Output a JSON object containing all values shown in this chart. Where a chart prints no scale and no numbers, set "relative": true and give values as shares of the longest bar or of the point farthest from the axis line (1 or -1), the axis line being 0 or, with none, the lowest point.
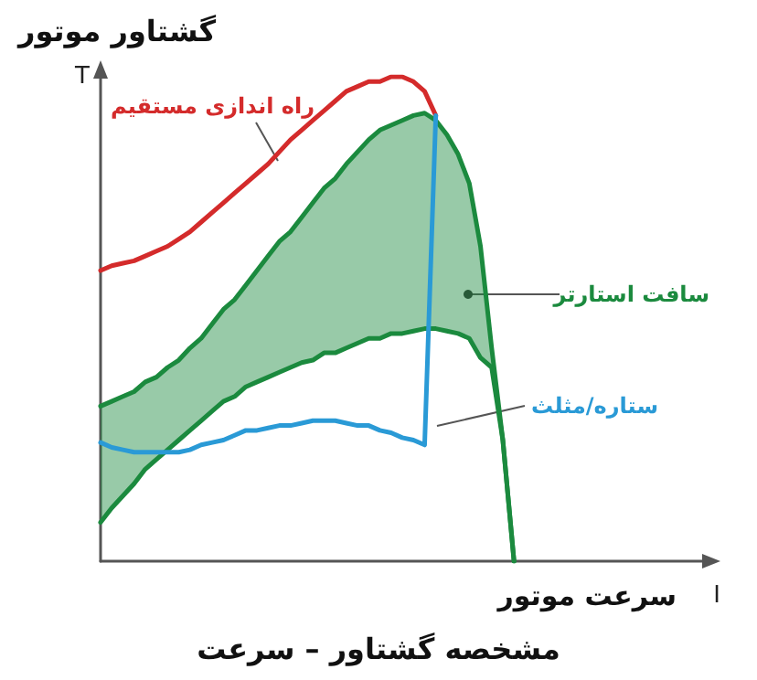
{
  "chart_data": {
    "type": "line",
    "title": "مشخصه گشتاور – سرعت",
    "xlabel": "سرعت موتور",
    "ylabel": "گشتاور موتور",
    "annotations": [
      "T",
      "I"
    ],
    "relative": true,
    "grid": false,
    "legend": false,
    "marker": "none",
    "line_style": "solid",
    "categories": [
      null,
      null,
      null,
      null,
      null,
      null,
      null,
      null,
      null,
      null,
      null,
      null,
      null,
      null,
      null,
      null,
      null,
      null,
      null,
      null,
      null,
      null,
      null,
      null,
      null,
      null,
      null,
      null,
      null,
      null,
      null,
      null,
      null,
      null,
      null,
      null,
      null,
      null,
      null,
      null,
      null,
      null,
      null,
      null,
      null,
      null,
      null,
      null,
      null,
      null,
      null,
      null,
      null,
      null,
      null
    ],
    "series": [
      {
        "name": "راه اندازی مستقیم",
        "color": "#d42b2b",
        "values": [
          0.6,
          0.61,
          0.615,
          0.62,
          0.63,
          0.64,
          0.65,
          0.665,
          0.68,
          0.7,
          0.72,
          0.74,
          0.76,
          0.78,
          0.8,
          0.82,
          0.845,
          0.87,
          0.89,
          0.91,
          0.93,
          0.95,
          0.97,
          0.98,
          0.99,
          0.99,
          1,
          1,
          0.99,
          0.97,
          0.92,
          null,
          null,
          null,
          null,
          null,
          null,
          null,
          null,
          null,
          null,
          null,
          null,
          null,
          null,
          null,
          null,
          null,
          null,
          null,
          null,
          null,
          null,
          null,
          null
        ]
      },
      {
        "name": "سافت استارتر",
        "color": "#1b8a3e",
        "values": [
          0.32,
          0.33,
          0.34,
          0.35,
          0.37,
          0.38,
          0.4,
          0.415,
          0.44,
          0.46,
          0.49,
          0.52,
          0.54,
          0.57,
          0.6,
          0.63,
          0.66,
          0.68,
          0.71,
          0.74,
          0.77,
          0.79,
          0.82,
          0.845,
          0.87,
          0.89,
          0.9,
          0.91,
          0.92,
          0.925,
          0.91,
          0.88,
          0.84,
          0.78,
          0.65,
          0.44,
          0.25,
          0,
          null,
          null,
          null,
          null,
          null,
          null,
          null,
          null,
          null,
          null,
          null,
          null,
          null,
          null,
          null,
          null,
          null
        ],
        "upper": [
          0.32,
          0.33,
          0.34,
          0.35,
          0.37,
          0.38,
          0.4,
          0.415,
          0.44,
          0.46,
          0.49,
          0.52,
          0.54,
          0.57,
          0.6,
          0.63,
          0.66,
          0.68,
          0.71,
          0.74,
          0.77,
          0.79,
          0.82,
          0.845,
          0.87,
          0.89,
          0.9,
          0.91,
          0.92,
          0.925,
          0.91,
          0.88,
          0.84,
          0.78,
          0.65,
          0.44,
          0.25,
          0,
          null,
          null,
          null,
          null,
          null,
          null,
          null,
          null,
          null,
          null,
          null,
          null,
          null,
          null,
          null,
          null,
          null
        ],
        "lower": [
          0.08,
          0.11,
          0.135,
          0.16,
          0.19,
          0.21,
          0.23,
          0.25,
          0.27,
          0.29,
          0.31,
          0.33,
          0.34,
          0.36,
          0.37,
          0.38,
          0.39,
          0.4,
          0.41,
          0.415,
          0.43,
          0.43,
          0.44,
          0.45,
          0.46,
          0.46,
          0.47,
          0.47,
          0.475,
          0.48,
          0.48,
          0.475,
          0.47,
          0.46,
          0.42,
          0.4,
          0.25,
          0,
          null,
          null,
          null,
          null,
          null,
          null,
          null,
          null,
          null,
          null,
          null,
          null,
          null,
          null,
          null,
          null,
          null
        ]
      },
      {
        "color": "#1b8a3e",
        "values": [
          0.08,
          0.11,
          0.135,
          0.16,
          0.19,
          0.21,
          0.23,
          0.25,
          0.27,
          0.29,
          0.31,
          0.33,
          0.34,
          0.36,
          0.37,
          0.38,
          0.39,
          0.4,
          0.41,
          0.415,
          0.43,
          0.43,
          0.44,
          0.45,
          0.46,
          0.46,
          0.47,
          0.47,
          0.475,
          0.48,
          0.48,
          0.475,
          0.47,
          0.46,
          0.42,
          0.4,
          0.25,
          0,
          null,
          null,
          null,
          null,
          null,
          null,
          null,
          null,
          null,
          null,
          null,
          null,
          null,
          null,
          null,
          null,
          null
        ]
      },
      {
        "name": "ستاره/مثلث",
        "color": "#2a9ad6",
        "values": [
          0.245,
          0.235,
          0.23,
          0.225,
          0.225,
          0.225,
          0.225,
          0.225,
          0.23,
          0.24,
          0.245,
          0.25,
          0.26,
          0.27,
          0.27,
          0.275,
          0.28,
          0.28,
          0.285,
          0.29,
          0.29,
          0.29,
          0.285,
          0.28,
          0.28,
          0.27,
          0.265,
          0.255,
          0.25,
          0.24,
          0.92,
          null,
          null,
          null,
          null,
          null,
          null,
          null,
          null,
          null,
          null,
          null,
          null,
          null,
          null,
          null,
          null,
          null,
          null,
          null,
          null,
          null,
          null,
          null,
          null
        ]
      }
    ]
  }
}
